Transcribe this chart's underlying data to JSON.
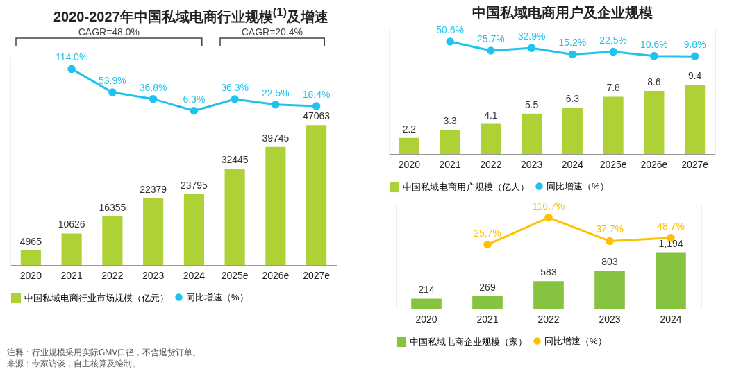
{
  "chart_data": [
    {
      "type": "bar",
      "title": "2020-2027年中国私域电商行业规模$^{(1)}$及增速",
      "categories": [
        "2020",
        "2021",
        "2022",
        "2023",
        "2024",
        "2025e",
        "2026e",
        "2027e"
      ],
      "legend": "bottom",
      "marker": "circle",
      "ylim": [
        0,
        70000
      ],
      "y2lim": [
        -390,
        145
      ],
      "series": [
        {
          "name": "中国私域电商行业市场规模（亿元）",
          "type": "bar",
          "color": "#aed136",
          "values": [
            4965,
            10626,
            16355,
            22379,
            23795,
            32445,
            39745,
            47063
          ],
          "value_labels": [
            "4965",
            "10626",
            "16355",
            "22379",
            "23795",
            "32445",
            "39745",
            "47063"
          ]
        },
        {
          "name": "同比增速（%）",
          "type": "line",
          "axis": "y2",
          "color": "#1fc3ee",
          "values": [
            null,
            114.0,
            53.9,
            36.8,
            6.3,
            36.3,
            22.5,
            18.4
          ],
          "value_labels": [
            null,
            "114.0%",
            "53.9%",
            "36.8%",
            "6.3%",
            "36.3%",
            "22.5%",
            "18.4%"
          ]
        }
      ],
      "annotations": [
        "CAGR=48.0%",
        "CAGR=20.4%",
        "注释：行业规模采用实际GMV口径，不含退货订单。",
        "来源：专家访谈，自主核算及绘制。"
      ]
    },
    {
      "type": "bar",
      "title": "中国私域电商用户及企业规模",
      "categories": [
        "2020",
        "2021",
        "2022",
        "2023",
        "2024",
        "2025e",
        "2026e",
        "2027e"
      ],
      "legend": "bottom",
      "marker": "circle",
      "ylim": [
        0,
        17
      ],
      "y2lim": [
        -260,
        85
      ],
      "series": [
        {
          "name": "中国私域电商用户规模（亿人）",
          "type": "bar",
          "color": "#aed136",
          "values": [
            2.2,
            3.3,
            4.1,
            5.5,
            6.3,
            7.8,
            8.6,
            9.4
          ],
          "value_labels": [
            "2.2",
            "3.3",
            "4.1",
            "5.5",
            "6.3",
            "7.8",
            "8.6",
            "9.4"
          ]
        },
        {
          "name": "同比增速（%）",
          "type": "line",
          "axis": "y2",
          "color": "#1fc3ee",
          "values": [
            null,
            50.6,
            25.7,
            32.9,
            15.2,
            22.5,
            10.6,
            9.8
          ],
          "value_labels": [
            null,
            "50.6%",
            "25.7%",
            "32.9%",
            "15.2%",
            "22.5%",
            "10.6%",
            "9.8%"
          ]
        }
      ]
    },
    {
      "type": "bar",
      "categories": [
        "2020",
        "2021",
        "2022",
        "2023",
        "2024"
      ],
      "legend": "bottom",
      "marker": "circle",
      "ylim": [
        0,
        2200
      ],
      "y2lim": [
        -190,
        160
      ],
      "series": [
        {
          "name": "中国私域电商企业规模（家）",
          "type": "bar",
          "color": "#86c440",
          "values": [
            214,
            269,
            583,
            803,
            1194
          ],
          "value_labels": [
            "214",
            "269",
            "583",
            "803",
            "1,194"
          ]
        },
        {
          "name": "同比增速（%）",
          "type": "line",
          "axis": "y2",
          "color": "#ffc000",
          "values": [
            null,
            25.7,
            116.7,
            37.7,
            48.7
          ],
          "value_labels": [
            null,
            "25.7%",
            "116.7%",
            "37.7%",
            "48.7%"
          ]
        }
      ]
    }
  ]
}
